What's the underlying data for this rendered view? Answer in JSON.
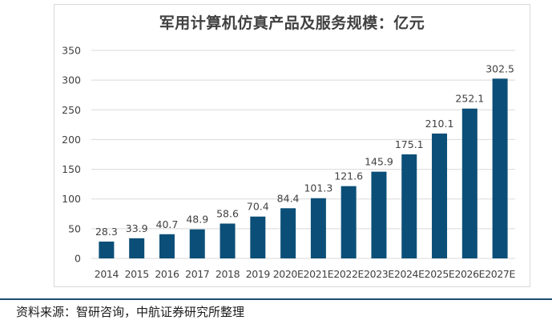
{
  "chart_data": {
    "type": "bar",
    "title": "军用计算机仿真产品及服务规模：亿元",
    "xlabel": "",
    "ylabel": "",
    "categories": [
      "2014",
      "2015",
      "2016",
      "2017",
      "2018",
      "2019",
      "2020E",
      "2021E",
      "2022E",
      "2023E",
      "2024E",
      "2025E",
      "2026E",
      "2027E"
    ],
    "values": [
      28.3,
      33.9,
      40.7,
      48.9,
      58.6,
      70.4,
      84.4,
      101.3,
      121.6,
      145.9,
      175.1,
      210.1,
      252.1,
      302.5
    ],
    "value_labels": [
      "28.3",
      "33.9",
      "40.7",
      "48.9",
      "58.6",
      "70.4",
      "84.4",
      "101.3",
      "121.6",
      "145.9",
      "175.1",
      "210.1",
      "252.1",
      "302.5"
    ],
    "ylim": [
      0,
      350
    ],
    "yticks": [
      "0",
      "50",
      "100",
      "150",
      "200",
      "250",
      "300",
      "350"
    ],
    "grid": true,
    "legend": "none",
    "bar_color": "#0b4f78",
    "grid_color": "#d9d9d9"
  },
  "source": "资料来源：智研咨询，中航证券研究所整理"
}
